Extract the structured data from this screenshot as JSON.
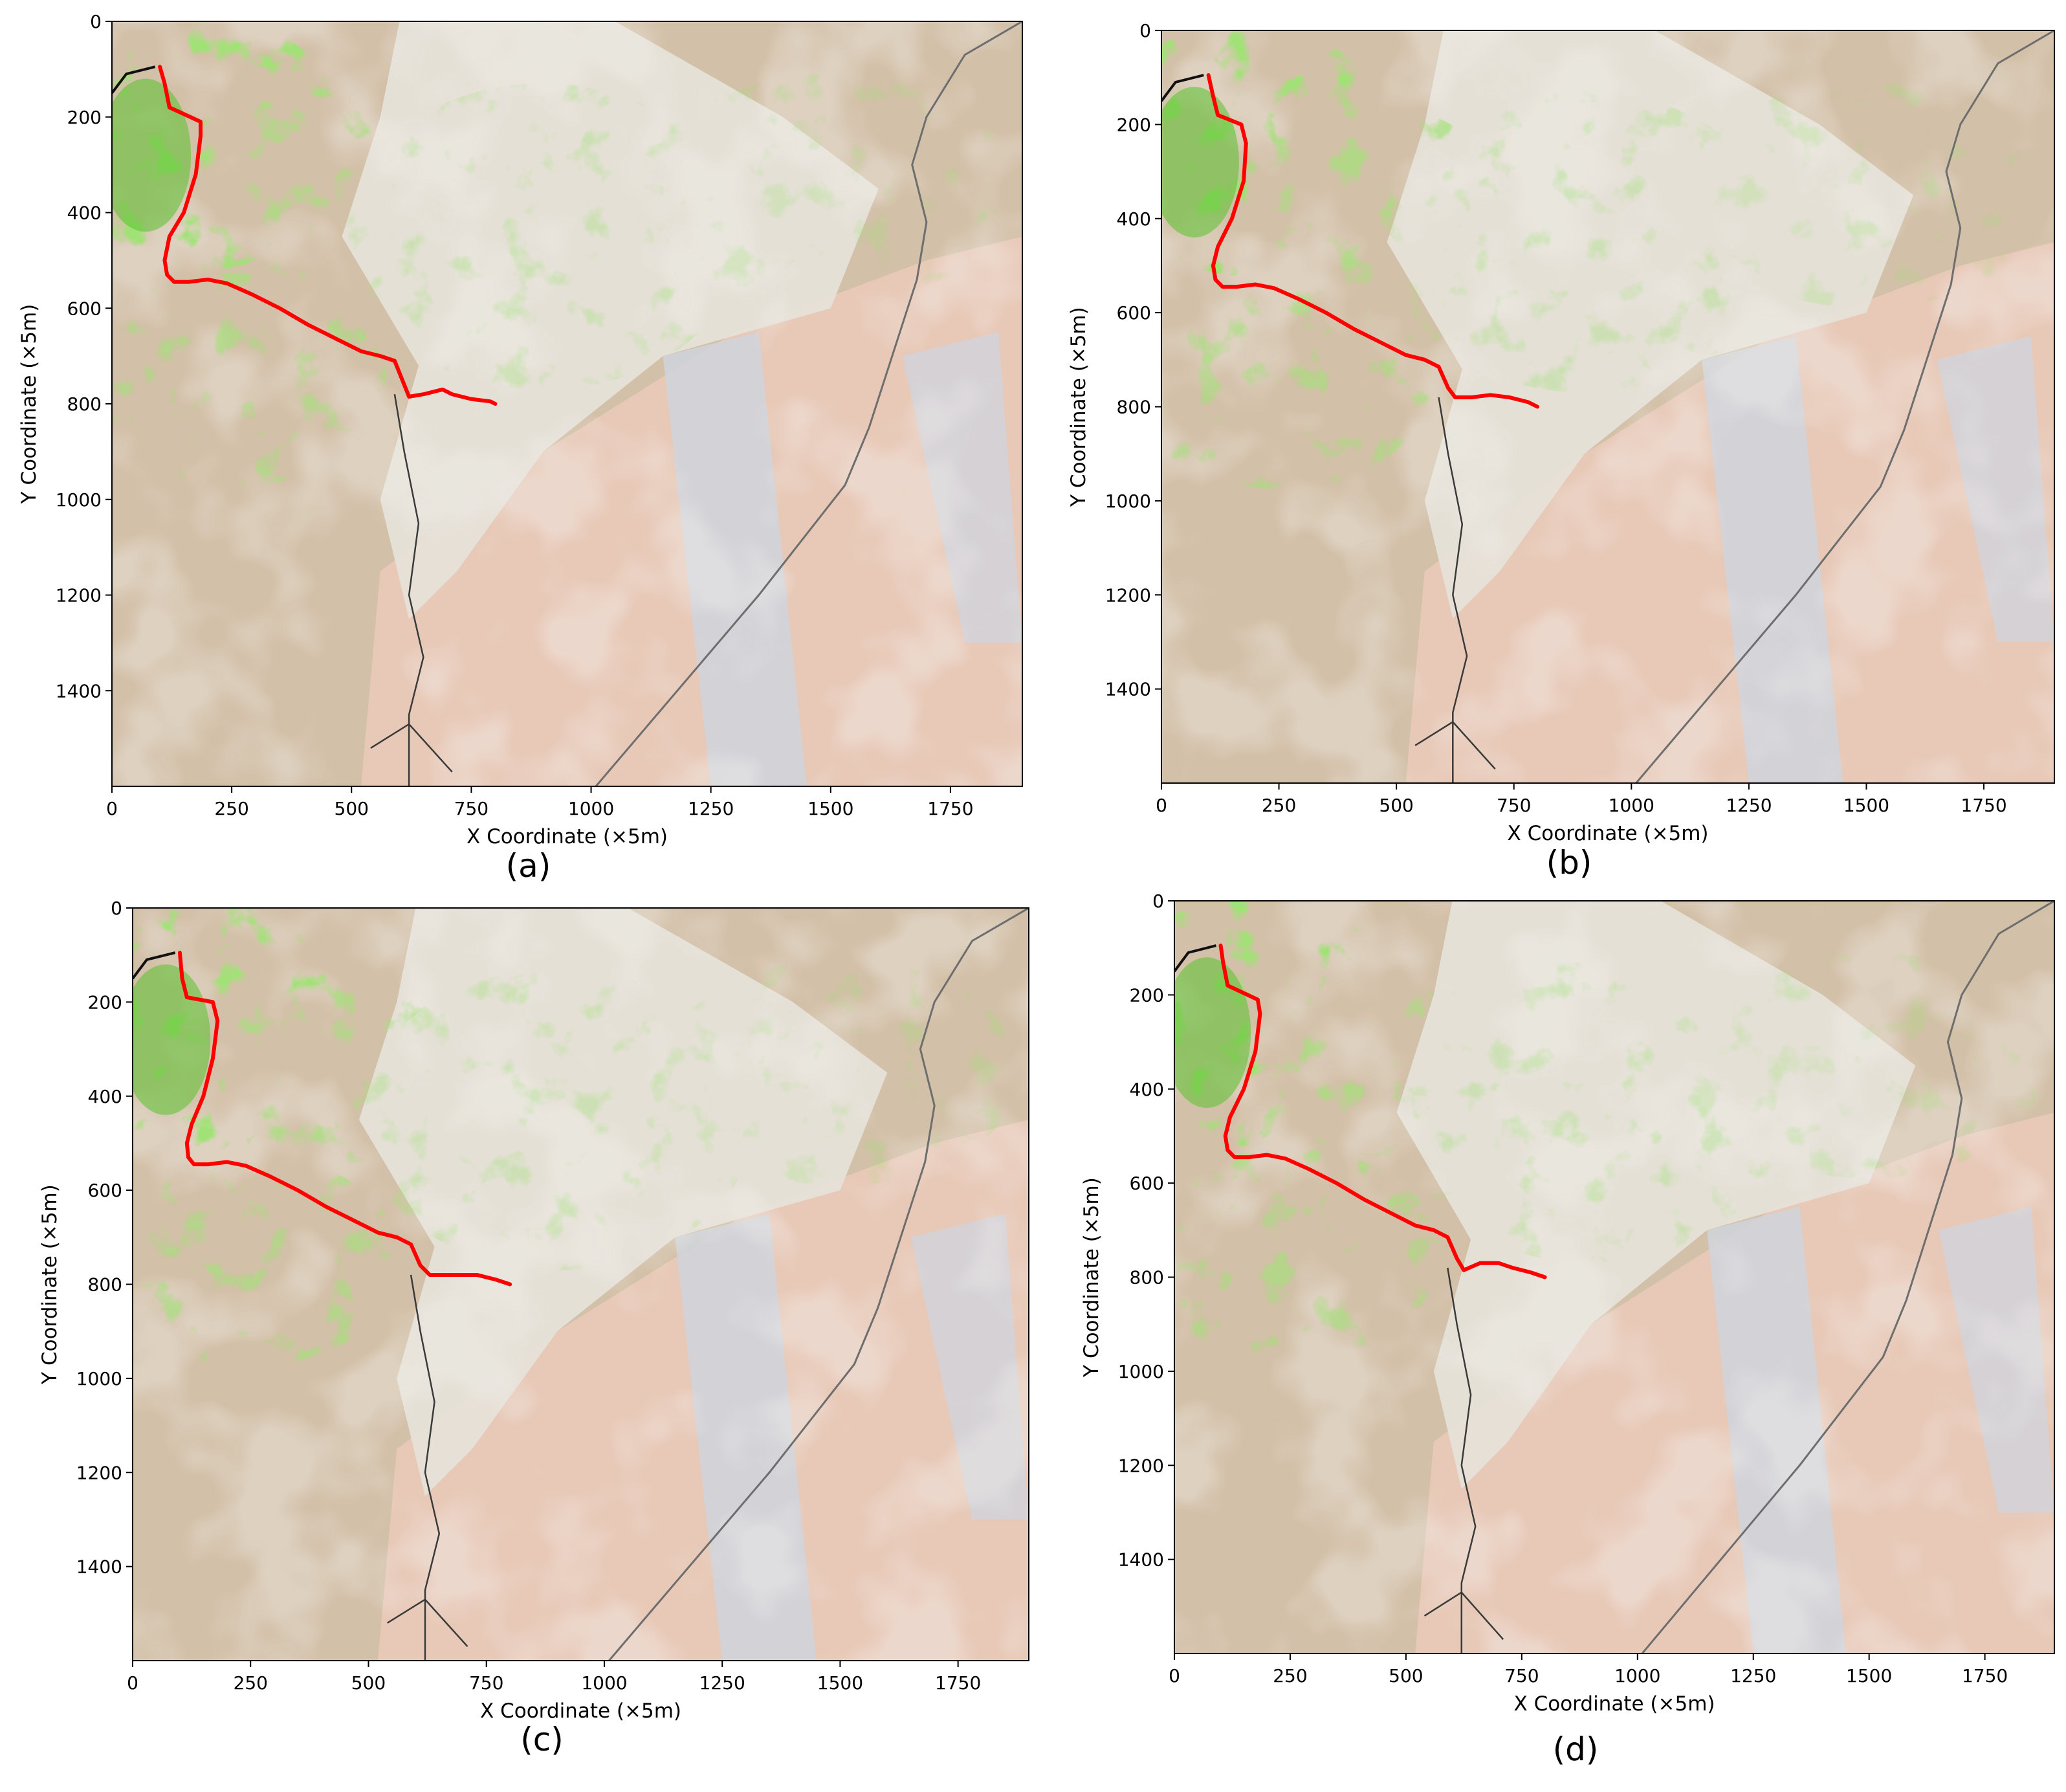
{
  "colors": {
    "vegetation": "#5ac22e",
    "route": "#ff0000",
    "background_soil": "#d3c0a8",
    "bare_light": "#e6e2d8",
    "water_gray": "#cfd3dc",
    "sand_pink": "#e8c9b8",
    "road_line": "#6e6e6e",
    "stream_line": "#3a3a3a"
  },
  "chart_data": [
    {
      "type": "map",
      "caption": "(a)",
      "xlabel": "X Coordinate (×5m)",
      "ylabel": "Y Coordinate (×5m)",
      "xlim": [
        0,
        1900
      ],
      "ylim": [
        1600,
        0
      ],
      "xticks": [
        "0",
        "250",
        "500",
        "750",
        "1000",
        "1250",
        "1500",
        "1750"
      ],
      "yticks": [
        "0",
        "200",
        "400",
        "600",
        "800",
        "1000",
        "1200",
        "1400"
      ],
      "route": {
        "x": [
          100,
          110,
          120,
          185,
          185,
          175,
          150,
          120,
          110,
          115,
          130,
          160,
          200,
          240,
          290,
          350,
          410,
          470,
          520,
          560,
          590,
          610,
          620,
          650,
          690,
          710,
          750,
          790,
          800
        ],
        "y": [
          95,
          130,
          180,
          210,
          240,
          320,
          400,
          450,
          500,
          530,
          545,
          545,
          540,
          548,
          570,
          600,
          635,
          665,
          690,
          700,
          710,
          760,
          785,
          780,
          770,
          780,
          790,
          795,
          800
        ]
      }
    },
    {
      "type": "map",
      "caption": "(b)",
      "xlabel": "X Coordinate (×5m)",
      "ylabel": "Y Coordinate (×5m)",
      "xlim": [
        0,
        1900
      ],
      "ylim": [
        1600,
        0
      ],
      "xticks": [
        "0",
        "250",
        "500",
        "750",
        "1000",
        "1250",
        "1500",
        "1750"
      ],
      "yticks": [
        "0",
        "200",
        "400",
        "600",
        "800",
        "1000",
        "1200",
        "1400"
      ],
      "route": {
        "x": [
          100,
          110,
          120,
          170,
          180,
          175,
          150,
          120,
          110,
          115,
          130,
          160,
          200,
          240,
          290,
          350,
          410,
          470,
          520,
          560,
          590,
          610,
          625,
          660,
          700,
          740,
          780,
          800
        ],
        "y": [
          95,
          140,
          180,
          200,
          240,
          320,
          400,
          460,
          500,
          530,
          545,
          545,
          540,
          548,
          570,
          600,
          635,
          665,
          690,
          700,
          715,
          760,
          780,
          780,
          775,
          780,
          790,
          800
        ]
      }
    },
    {
      "type": "map",
      "caption": "(c)",
      "xlabel": "X Coordinate (×5m)",
      "ylabel": "Y Coordinate (×5m)",
      "xlim": [
        0,
        1900
      ],
      "ylim": [
        1600,
        0
      ],
      "xticks": [
        "0",
        "250",
        "500",
        "750",
        "1000",
        "1250",
        "1500",
        "1750"
      ],
      "yticks": [
        "0",
        "200",
        "400",
        "600",
        "800",
        "1000",
        "1200",
        "1400"
      ],
      "route": {
        "x": [
          100,
          105,
          115,
          170,
          180,
          170,
          150,
          125,
          115,
          118,
          130,
          160,
          200,
          240,
          290,
          350,
          410,
          470,
          520,
          560,
          590,
          610,
          630,
          680,
          730,
          770,
          800
        ],
        "y": [
          95,
          150,
          190,
          200,
          240,
          320,
          400,
          460,
          500,
          530,
          545,
          545,
          540,
          548,
          570,
          600,
          635,
          665,
          690,
          700,
          715,
          760,
          780,
          780,
          780,
          790,
          800
        ]
      }
    },
    {
      "type": "map",
      "caption": "(d)",
      "xlabel": "X Coordinate (×5m)",
      "ylabel": "Y Coordinate (×5m)",
      "xlim": [
        0,
        1900
      ],
      "ylim": [
        1600,
        0
      ],
      "xticks": [
        "0",
        "250",
        "500",
        "750",
        "1000",
        "1250",
        "1500",
        "1750"
      ],
      "yticks": [
        "0",
        "200",
        "400",
        "600",
        "800",
        "1000",
        "1200",
        "1400"
      ],
      "route": {
        "x": [
          100,
          105,
          115,
          180,
          185,
          175,
          150,
          120,
          110,
          115,
          130,
          160,
          200,
          240,
          290,
          350,
          410,
          470,
          520,
          560,
          590,
          610,
          625,
          660,
          700,
          730,
          770,
          800
        ],
        "y": [
          95,
          130,
          180,
          210,
          240,
          320,
          400,
          460,
          500,
          530,
          545,
          545,
          540,
          548,
          570,
          600,
          635,
          665,
          690,
          700,
          715,
          760,
          785,
          770,
          770,
          780,
          790,
          800
        ]
      }
    }
  ]
}
